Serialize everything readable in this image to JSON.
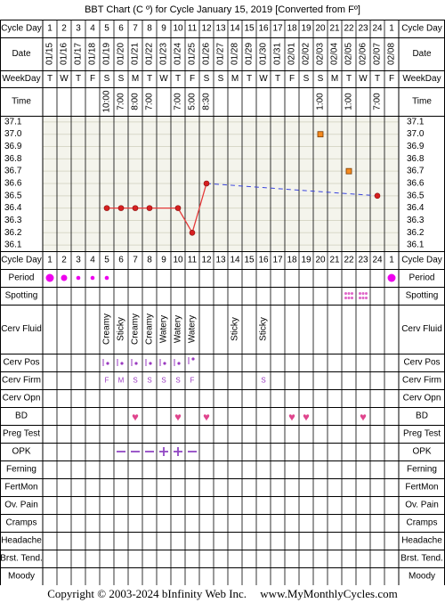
{
  "header": {
    "title": "BBT Chart (C º) for Cycle January 15, 2019  [Converted from Fº]"
  },
  "footer": {
    "copyright": "Copyright © 2003-2024 bInfinity Web Inc.",
    "site": "www.MyMonthlyCycles.com"
  },
  "colors": {
    "grid": "#000000",
    "plot_bg": "#f4f4ec",
    "temp_line": "#e53a3a",
    "temp_marker": "#d62020",
    "trend_line": "#3a44dd",
    "open_marker_fill": "#f58a1f",
    "period_dot": "#ee00ee",
    "spotting_dot": "#e065c8",
    "heart": "#e0458d",
    "opk_line": "#9147c4",
    "position_text": "#9a39c0"
  },
  "chart_data": {
    "type": "line",
    "title": "BBT Chart (C º) for Cycle January 15, 2019  [Converted from Fº]",
    "cycle_days": [
      "1",
      "2",
      "3",
      "4",
      "5",
      "6",
      "7",
      "8",
      "9",
      "10",
      "11",
      "12",
      "13",
      "14",
      "15",
      "16",
      "17",
      "18",
      "19",
      "20",
      "21",
      "22",
      "23",
      "24",
      "1"
    ],
    "dates": [
      "01/15",
      "01/16",
      "01/17",
      "01/18",
      "01/19",
      "01/20",
      "01/21",
      "01/22",
      "01/23",
      "01/24",
      "01/25",
      "01/26",
      "01/27",
      "01/28",
      "01/29",
      "01/30",
      "01/31",
      "02/01",
      "02/02",
      "02/03",
      "02/04",
      "02/05",
      "02/06",
      "02/07",
      "02/08"
    ],
    "weekdays": [
      "T",
      "W",
      "T",
      "F",
      "S",
      "S",
      "M",
      "T",
      "W",
      "T",
      "F",
      "S",
      "S",
      "M",
      "T",
      "W",
      "T",
      "F",
      "S",
      "S",
      "M",
      "T",
      "W",
      "T",
      "F"
    ],
    "times": [
      "",
      "",
      "",
      "",
      "10:00",
      "7:00",
      "8:00",
      "7:00",
      "",
      "7:00",
      "5:00",
      "8:30",
      "",
      "",
      "",
      "",
      "",
      "",
      "",
      "1:00",
      "",
      "1:00",
      "",
      "7:00",
      ""
    ],
    "y_ticks": [
      "37.1",
      "37.0",
      "36.9",
      "36.8",
      "36.7",
      "36.6",
      "36.5",
      "36.4",
      "36.3",
      "36.2",
      "36.1"
    ],
    "ylim": [
      36.1,
      37.1
    ],
    "temperatures": [
      null,
      null,
      null,
      null,
      36.4,
      36.4,
      36.4,
      36.4,
      null,
      36.4,
      36.2,
      36.6,
      null,
      null,
      null,
      null,
      null,
      null,
      null,
      null,
      null,
      null,
      null,
      36.5,
      null
    ],
    "excluded_temperatures": [
      {
        "day_index": 19,
        "value": 37.0
      },
      {
        "day_index": 21,
        "value": 36.7
      }
    ],
    "trend_line": {
      "from": {
        "day_index": 11,
        "value": 36.6
      },
      "to": {
        "day_index": 23,
        "value": 36.5
      }
    },
    "rows": {
      "period": [
        3,
        2,
        1,
        1,
        1,
        0,
        0,
        0,
        0,
        0,
        0,
        0,
        0,
        0,
        0,
        0,
        0,
        0,
        0,
        0,
        0,
        0,
        0,
        0,
        3
      ],
      "spotting": [
        0,
        0,
        0,
        0,
        0,
        0,
        0,
        0,
        0,
        0,
        0,
        0,
        0,
        0,
        0,
        0,
        0,
        0,
        0,
        0,
        0,
        1,
        1,
        0,
        0
      ],
      "cerv_fluid": [
        "",
        "",
        "",
        "",
        "Creamy",
        "Sticky",
        "Creamy",
        "Creamy",
        "Watery",
        "Watery",
        "Watery",
        "",
        "",
        "Sticky",
        "",
        "Sticky",
        "",
        "",
        "",
        "",
        "",
        "",
        "",
        "",
        ""
      ],
      "cerv_pos": [
        "",
        "",
        "",
        "",
        "lm",
        "lm",
        "lm",
        "lm",
        "lm",
        "lm",
        "hm",
        "",
        "",
        "",
        "",
        "",
        "",
        "",
        "",
        "",
        "",
        "",
        "",
        "",
        ""
      ],
      "cerv_firm": [
        "",
        "",
        "",
        "",
        "F",
        "M",
        "S",
        "S",
        "S",
        "S",
        "F",
        "",
        "",
        "",
        "",
        "S",
        "",
        "",
        "",
        "",
        "",
        "",
        "",
        "",
        ""
      ],
      "bd": [
        0,
        0,
        0,
        0,
        0,
        0,
        1,
        0,
        0,
        1,
        0,
        1,
        0,
        0,
        0,
        0,
        0,
        1,
        1,
        0,
        0,
        0,
        1,
        0,
        0
      ],
      "opk": [
        "",
        "",
        "",
        "",
        "",
        "-",
        "-",
        "-",
        "+",
        "+",
        "-",
        "",
        "",
        "",
        "",
        "",
        "",
        "",
        "",
        "",
        "",
        "",
        "",
        "",
        ""
      ]
    },
    "row_labels": {
      "cycle_day": "Cycle Day",
      "date": "Date",
      "weekday": "WeekDay",
      "time": "Time",
      "period": "Period",
      "spotting": "Spotting",
      "cerv_fluid": "Cerv Fluid",
      "cerv_pos": "Cerv Pos",
      "cerv_firm": "Cerv Firm",
      "cerv_opn": "Cerv Opn",
      "bd": "BD",
      "preg_test": "Preg Test",
      "opk": "OPK",
      "ferning": "Ferning",
      "fertmon": "FertMon",
      "ov_pain": "Ov. Pain",
      "cramps": "Cramps",
      "headache": "Headache",
      "brst_tend": "Brst. Tend.",
      "moody": "Moody"
    }
  }
}
